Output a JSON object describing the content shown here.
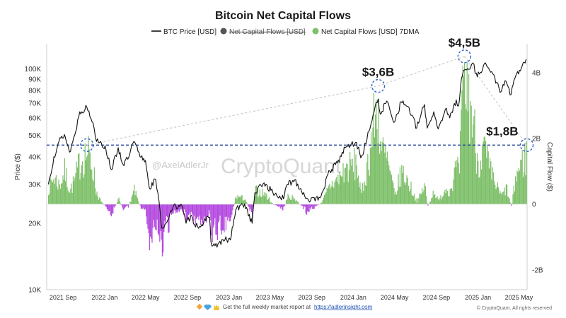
{
  "colors": {
    "price_line": "#111111",
    "inflow": "#7fc06a",
    "outflow": "#b44be0",
    "reference_line": "#1f3f99",
    "trend_line": "#c8c8c8",
    "circle": "#2a60c8",
    "raw_flow_dot": "#555555",
    "avg_dot": "#7fc06a"
  },
  "watermark": {
    "author": "@AxelAdlerJr",
    "brand": "CryptoQuant"
  },
  "footer": {
    "icons": [
      "diamond-icon",
      "gem-icon",
      "hands-icon"
    ],
    "text": "Get the full weekly market report at",
    "link": "https://adlerinsight.com",
    "copyright": "© CryptoQuant. All rights reserved"
  },
  "chart_data": {
    "type": "line",
    "title": "Bitcoin Net Capital Flows",
    "legend": [
      {
        "name": "BTC Price [USD]",
        "kind": "line",
        "struck": false
      },
      {
        "name": "Net Capital Flows [USD]",
        "kind": "dot",
        "struck": true
      },
      {
        "name": "Net Capital Flows [USD] 7DMA",
        "kind": "dot",
        "struck": false
      }
    ],
    "legend_placement": "top-center",
    "x_labels": [
      "2021 Sep",
      "2022 Jan",
      "2022 May",
      "2022 Sep",
      "2023 Jan",
      "2023 May",
      "2023 Sep",
      "2024 Jan",
      "2024 May",
      "2024 Sep",
      "2025 Jan",
      "2025 May"
    ],
    "x_range": [
      "2021-07-15",
      "2025-05-25"
    ],
    "y_left": {
      "label": "Price ($)",
      "scale": "log",
      "range": [
        10000,
        130000
      ],
      "ticks": [
        {
          "value": 10000,
          "label": "10K"
        },
        {
          "value": 20000,
          "label": "20K"
        },
        {
          "value": 30000,
          "label": "30K"
        },
        {
          "value": 40000,
          "label": "40K"
        },
        {
          "value": 50000,
          "label": "50K"
        },
        {
          "value": 60000,
          "label": "60K"
        },
        {
          "value": 70000,
          "label": "70K"
        },
        {
          "value": 80000,
          "label": "80K"
        },
        {
          "value": 90000,
          "label": "90K"
        },
        {
          "value": 100000,
          "label": "100K"
        }
      ]
    },
    "y_right": {
      "label": "Capital Flow ($)",
      "unit": "billion USD",
      "range": [
        -2.3,
        5.0
      ],
      "ticks": [
        {
          "value": 4,
          "label": "4B"
        },
        {
          "value": 2,
          "label": "2B"
        },
        {
          "value": 0,
          "label": "0"
        },
        {
          "value": -2,
          "label": "-2B"
        }
      ]
    },
    "grid": false,
    "series": [
      {
        "name": "BTC Price [USD]",
        "axis": "left",
        "points": [
          [
            "2021-07-20",
            30000
          ],
          [
            "2021-08-05",
            40000
          ],
          [
            "2021-08-20",
            47000
          ],
          [
            "2021-09-05",
            50500
          ],
          [
            "2021-09-20",
            42000
          ],
          [
            "2021-10-05",
            50000
          ],
          [
            "2021-10-20",
            64000
          ],
          [
            "2021-11-10",
            67000
          ],
          [
            "2021-11-28",
            57000
          ],
          [
            "2021-12-05",
            49000
          ],
          [
            "2021-12-20",
            47000
          ],
          [
            "2022-01-05",
            43000
          ],
          [
            "2022-01-22",
            35000
          ],
          [
            "2022-02-10",
            44000
          ],
          [
            "2022-02-24",
            37000
          ],
          [
            "2022-03-10",
            39000
          ],
          [
            "2022-03-28",
            47000
          ],
          [
            "2022-04-15",
            40000
          ],
          [
            "2022-05-01",
            38500
          ],
          [
            "2022-05-12",
            29000
          ],
          [
            "2022-05-31",
            31500
          ],
          [
            "2022-06-13",
            22500
          ],
          [
            "2022-06-18",
            19000
          ],
          [
            "2022-06-30",
            20000
          ],
          [
            "2022-07-20",
            23500
          ],
          [
            "2022-08-13",
            24400
          ],
          [
            "2022-08-28",
            20000
          ],
          [
            "2022-09-10",
            21500
          ],
          [
            "2022-10-01",
            19300
          ],
          [
            "2022-10-25",
            20500
          ],
          [
            "2022-11-05",
            21300
          ],
          [
            "2022-11-09",
            16500
          ],
          [
            "2022-11-21",
            15800
          ],
          [
            "2022-12-20",
            16800
          ],
          [
            "2023-01-05",
            16800
          ],
          [
            "2023-01-21",
            23000
          ],
          [
            "2023-02-16",
            24500
          ],
          [
            "2023-03-10",
            20000
          ],
          [
            "2023-03-18",
            27500
          ],
          [
            "2023-04-14",
            30500
          ],
          [
            "2023-05-10",
            27500
          ],
          [
            "2023-06-10",
            25800
          ],
          [
            "2023-06-21",
            30000
          ],
          [
            "2023-07-13",
            31500
          ],
          [
            "2023-08-17",
            26000
          ],
          [
            "2023-09-11",
            25200
          ],
          [
            "2023-10-01",
            27500
          ],
          [
            "2023-10-24",
            34500
          ],
          [
            "2023-11-15",
            37500
          ],
          [
            "2023-12-08",
            44000
          ],
          [
            "2024-01-10",
            46500
          ],
          [
            "2024-01-23",
            39500
          ],
          [
            "2024-02-10",
            48000
          ],
          [
            "2024-02-28",
            62000
          ],
          [
            "2024-03-14",
            73000
          ],
          [
            "2024-03-20",
            62500
          ],
          [
            "2024-04-08",
            71500
          ],
          [
            "2024-05-01",
            57500
          ],
          [
            "2024-05-20",
            71000
          ],
          [
            "2024-06-10",
            67500
          ],
          [
            "2024-07-05",
            54000
          ],
          [
            "2024-07-28",
            69000
          ],
          [
            "2024-08-05",
            54000
          ],
          [
            "2024-08-24",
            64000
          ],
          [
            "2024-09-06",
            53500
          ],
          [
            "2024-09-27",
            65800
          ],
          [
            "2024-10-10",
            60000
          ],
          [
            "2024-10-29",
            72500
          ],
          [
            "2024-11-05",
            68000
          ],
          [
            "2024-11-13",
            90000
          ],
          [
            "2024-11-22",
            99000
          ],
          [
            "2024-12-05",
            99500
          ],
          [
            "2024-12-17",
            106500
          ],
          [
            "2024-12-30",
            92000
          ],
          [
            "2025-01-20",
            106000
          ],
          [
            "2025-02-01",
            101000
          ],
          [
            "2025-02-25",
            87000
          ],
          [
            "2025-03-10",
            79000
          ],
          [
            "2025-03-24",
            88000
          ],
          [
            "2025-04-08",
            76500
          ],
          [
            "2025-04-22",
            93500
          ],
          [
            "2025-05-08",
            101000
          ],
          [
            "2025-05-22",
            111000
          ]
        ]
      },
      {
        "name": "Net Capital Flows [USD] 7DMA",
        "axis": "right",
        "unit": "billion USD",
        "points": [
          [
            "2021-07-20",
            0.6
          ],
          [
            "2021-08-05",
            1.0
          ],
          [
            "2021-08-20",
            0.7
          ],
          [
            "2021-09-05",
            1.2
          ],
          [
            "2021-09-20",
            0.5
          ],
          [
            "2021-10-05",
            0.9
          ],
          [
            "2021-10-20",
            1.6
          ],
          [
            "2021-11-10",
            1.9
          ],
          [
            "2021-11-28",
            1.3
          ],
          [
            "2021-12-05",
            0.5
          ],
          [
            "2021-12-20",
            0.1
          ],
          [
            "2022-01-05",
            -0.1
          ],
          [
            "2022-01-22",
            -0.35
          ],
          [
            "2022-02-10",
            0.2
          ],
          [
            "2022-02-24",
            -0.2
          ],
          [
            "2022-03-10",
            -0.1
          ],
          [
            "2022-03-28",
            0.5
          ],
          [
            "2022-04-15",
            -0.1
          ],
          [
            "2022-05-01",
            -0.3
          ],
          [
            "2022-05-12",
            -1.2
          ],
          [
            "2022-05-31",
            -0.7
          ],
          [
            "2022-06-13",
            -1.6
          ],
          [
            "2022-06-18",
            -2.2
          ],
          [
            "2022-06-30",
            -1.0
          ],
          [
            "2022-07-20",
            -0.3
          ],
          [
            "2022-08-13",
            -0.2
          ],
          [
            "2022-08-28",
            -0.5
          ],
          [
            "2022-09-10",
            -0.4
          ],
          [
            "2022-10-01",
            -0.6
          ],
          [
            "2022-10-25",
            -0.5
          ],
          [
            "2022-11-05",
            -0.3
          ],
          [
            "2022-11-09",
            -1.1
          ],
          [
            "2022-11-21",
            -1.0
          ],
          [
            "2022-12-20",
            -0.7
          ],
          [
            "2023-01-05",
            -0.5
          ],
          [
            "2023-01-21",
            0.3
          ],
          [
            "2023-02-16",
            0.2
          ],
          [
            "2023-03-10",
            -0.4
          ],
          [
            "2023-03-18",
            0.5
          ],
          [
            "2023-04-14",
            0.4
          ],
          [
            "2023-05-10",
            0.0
          ],
          [
            "2023-06-10",
            -0.2
          ],
          [
            "2023-06-21",
            0.3
          ],
          [
            "2023-07-13",
            0.2
          ],
          [
            "2023-08-17",
            -0.3
          ],
          [
            "2023-09-11",
            -0.1
          ],
          [
            "2023-10-01",
            0.1
          ],
          [
            "2023-10-24",
            0.7
          ],
          [
            "2023-11-15",
            0.9
          ],
          [
            "2023-12-08",
            1.3
          ],
          [
            "2024-01-10",
            1.5
          ],
          [
            "2024-01-23",
            0.3
          ],
          [
            "2024-02-10",
            1.4
          ],
          [
            "2024-02-28",
            2.9
          ],
          [
            "2024-03-14",
            3.6
          ],
          [
            "2024-03-20",
            2.1
          ],
          [
            "2024-04-08",
            1.6
          ],
          [
            "2024-05-01",
            0.3
          ],
          [
            "2024-05-20",
            1.2
          ],
          [
            "2024-06-10",
            0.8
          ],
          [
            "2024-07-05",
            0.1
          ],
          [
            "2024-07-28",
            0.7
          ],
          [
            "2024-08-05",
            -0.1
          ],
          [
            "2024-08-24",
            0.5
          ],
          [
            "2024-09-06",
            0.1
          ],
          [
            "2024-09-27",
            0.6
          ],
          [
            "2024-10-10",
            0.5
          ],
          [
            "2024-10-29",
            1.4
          ],
          [
            "2024-11-05",
            1.0
          ],
          [
            "2024-11-13",
            3.2
          ],
          [
            "2024-11-22",
            4.5
          ],
          [
            "2024-12-05",
            3.8
          ],
          [
            "2024-12-17",
            3.0
          ],
          [
            "2024-12-30",
            1.6
          ],
          [
            "2025-01-20",
            2.0
          ],
          [
            "2025-02-01",
            1.3
          ],
          [
            "2025-02-25",
            0.6
          ],
          [
            "2025-03-10",
            0.3
          ],
          [
            "2025-03-24",
            0.6
          ],
          [
            "2025-04-08",
            -0.1
          ],
          [
            "2025-04-22",
            1.1
          ],
          [
            "2025-05-08",
            1.5
          ],
          [
            "2025-05-22",
            1.8
          ]
        ]
      }
    ],
    "reference_line": {
      "axis": "right",
      "value": 1.8,
      "style": "dashed"
    },
    "annotations": [
      {
        "label": "$3,6B",
        "date": "2024-03-14",
        "value": 3.6,
        "axis": "right"
      },
      {
        "label": "$4,5B",
        "date": "2024-11-22",
        "value": 4.5,
        "axis": "right"
      },
      {
        "label": "$1,8B",
        "date": "2025-05-24",
        "value": 1.8,
        "axis": "right"
      }
    ],
    "highlight_circles": [
      {
        "date": "2021-11-10",
        "value": 1.8,
        "axis": "right"
      },
      {
        "date": "2024-03-14",
        "value": 3.6,
        "axis": "right"
      },
      {
        "date": "2024-11-22",
        "value": 4.5,
        "axis": "right"
      },
      {
        "date": "2025-05-24",
        "value": 1.8,
        "axis": "right"
      }
    ],
    "trend_lines": [
      {
        "from": {
          "date": "2021-11-10",
          "value": 1.8
        },
        "to": {
          "date": "2024-03-14",
          "value": 3.6
        }
      },
      {
        "from": {
          "date": "2024-03-14",
          "value": 3.6
        },
        "to": {
          "date": "2024-11-22",
          "value": 4.5
        }
      },
      {
        "from": {
          "date": "2024-11-22",
          "value": 4.5
        },
        "to": {
          "date": "2025-05-24",
          "value": 1.8
        }
      }
    ]
  }
}
